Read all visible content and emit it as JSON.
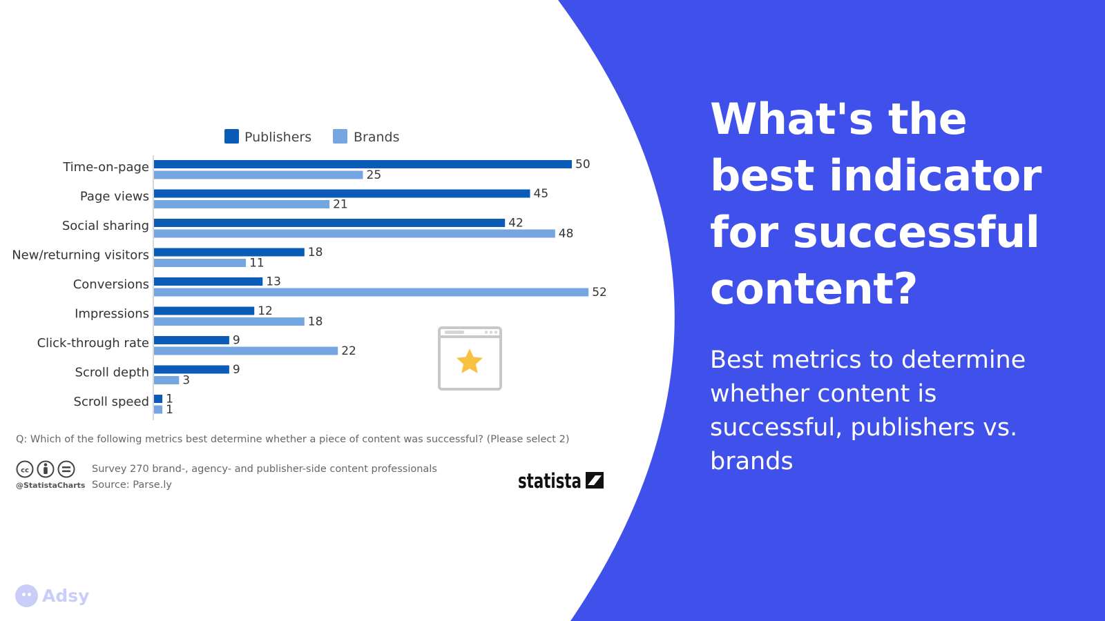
{
  "headline": "What's the best indicator for successful content?",
  "subheadline": "Best metrics to determine whether content is successful, publishers vs. brands",
  "brand_watermark": "Adsy",
  "colors": {
    "right_panel": "#4050ea",
    "publishers": "#0a5cb6",
    "brands": "#76a6e2",
    "text": "#333333",
    "footnote": "#666666"
  },
  "chart_data": {
    "type": "bar",
    "orientation": "horizontal",
    "categories": [
      "Time-on-page",
      "Page views",
      "Social sharing",
      "New/returning visitors",
      "Conversions",
      "Impressions",
      "Click-through rate",
      "Scroll depth",
      "Scroll speed"
    ],
    "series": [
      {
        "name": "Publishers",
        "values": [
          50,
          45,
          42,
          18,
          13,
          12,
          9,
          9,
          1
        ]
      },
      {
        "name": "Brands",
        "values": [
          25,
          21,
          48,
          11,
          52,
          18,
          22,
          3,
          1
        ]
      }
    ],
    "legend_position": "top",
    "question": "Q: Which of the following metrics best determine whether a piece of content was successful? (Please select 2)",
    "survey_note": "Survey 270 brand-, agency- and publisher-side content professionals",
    "source": "Source: Parse.ly",
    "credit": "@StatistaCharts",
    "logo_text": "statista",
    "icons": [
      "cc-icon",
      "person-icon",
      "equals-icon",
      "browser-star-icon"
    ]
  }
}
